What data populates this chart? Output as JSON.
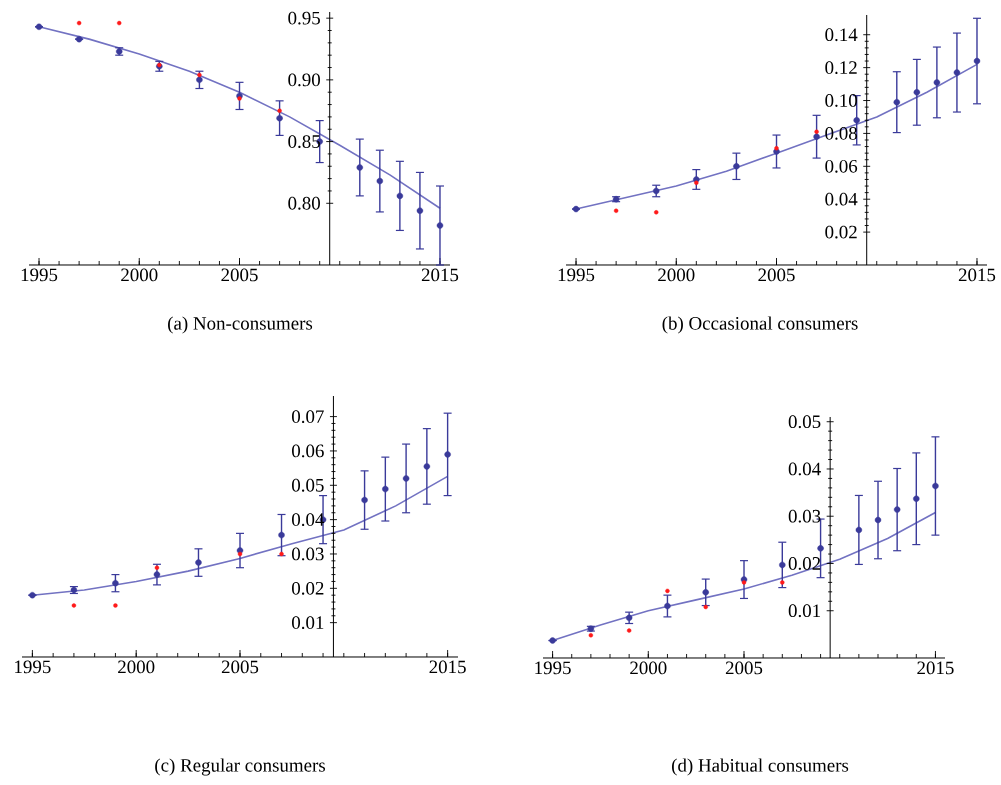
{
  "chart_data": [
    {
      "type": "scatter",
      "title": "(a) Non-consumers",
      "xlim": [
        1994.5,
        2015.5
      ],
      "ylim": [
        0.75,
        0.955
      ],
      "xticks": [
        1995,
        2000,
        2005,
        2015
      ],
      "yticks": [
        {
          "value": 0.8,
          "label": "0.80"
        },
        0.85,
        {
          "value": 0.9,
          "label": "0.90"
        },
        0.95
      ],
      "marker": "circle",
      "series": [
        {
          "type": "line",
          "color": "#7272c2",
          "marker": "none",
          "x": [
            1995,
            1997.5,
            2000,
            2002.5,
            2005,
            2007.5,
            2010,
            2012.5,
            2015
          ],
          "values": [
            0.943,
            0.933,
            0.921,
            0.907,
            0.89,
            0.87,
            0.847,
            0.823,
            0.796
          ]
        },
        {
          "color": "#3a3a9a",
          "x": [
            1995,
            1997,
            1999,
            2001,
            2003,
            2005,
            2007,
            2009,
            2011,
            2012,
            2013,
            2014,
            2015
          ],
          "values": [
            0.943,
            0.933,
            0.923,
            0.911,
            0.9,
            0.887,
            0.869,
            0.85,
            0.829,
            0.818,
            0.806,
            0.794,
            0.782
          ],
          "errors": [
            null,
            null,
            0.003,
            0.004,
            0.007,
            0.011,
            0.014,
            0.017,
            0.023,
            0.025,
            0.028,
            0.031,
            0.032
          ]
        },
        {
          "color": "#ff1a1a",
          "x": [
            1997,
            1999,
            2001,
            2003,
            2005,
            2007
          ],
          "values": [
            0.946,
            0.946,
            0.912,
            0.904,
            0.885,
            0.875
          ]
        }
      ]
    },
    {
      "type": "scatter",
      "title": "(b) Occasional consumers",
      "xlim": [
        1994.5,
        2015.5
      ],
      "ylim": [
        0,
        0.152
      ],
      "xticks": [
        1995,
        2000,
        2005,
        2015
      ],
      "yticks": [
        0.02,
        0.04,
        0.06,
        0.08,
        {
          "value": 0.1,
          "label": "0.10"
        },
        0.12,
        0.14
      ],
      "marker": "circle",
      "series": [
        {
          "type": "line",
          "color": "#7272c2",
          "marker": "none",
          "x": [
            1995,
            1997.5,
            2000,
            2002.5,
            2005,
            2007.5,
            2010,
            2012.5,
            2015
          ],
          "values": [
            0.034,
            0.041,
            0.048,
            0.057,
            0.068,
            0.079,
            0.09,
            0.105,
            0.122
          ]
        },
        {
          "color": "#3a3a9a",
          "x": [
            1995,
            1997,
            1999,
            2001,
            2003,
            2005,
            2007,
            2009,
            2011,
            2012,
            2013,
            2014,
            2015
          ],
          "values": [
            0.034,
            0.04,
            0.045,
            0.052,
            0.06,
            0.069,
            0.078,
            0.088,
            0.099,
            0.105,
            0.111,
            0.117,
            0.124
          ],
          "errors": [
            null,
            0.0015,
            0.0035,
            0.006,
            0.008,
            0.01,
            0.013,
            0.015,
            0.0185,
            0.02,
            0.0215,
            0.024,
            0.026
          ]
        },
        {
          "color": "#ff1a1a",
          "x": [
            1997,
            1999,
            2001,
            2005,
            2007
          ],
          "values": [
            0.033,
            0.032,
            0.05,
            0.071,
            0.081
          ]
        }
      ]
    },
    {
      "type": "scatter",
      "title": "(c) Regular consumers",
      "xlim": [
        1994.5,
        2015.5
      ],
      "ylim": [
        0,
        0.076
      ],
      "xticks": [
        1995,
        2000,
        2005,
        2015
      ],
      "yticks": [
        0.01,
        0.02,
        0.03,
        0.04,
        0.05,
        0.06,
        0.07
      ],
      "marker": "circle",
      "series": [
        {
          "type": "line",
          "color": "#7272c2",
          "marker": "none",
          "x": [
            1995,
            1997.5,
            2000,
            2002.5,
            2005,
            2007.5,
            2010,
            2012.5,
            2015
          ],
          "values": [
            0.018,
            0.0195,
            0.022,
            0.025,
            0.0287,
            0.033,
            0.037,
            0.044,
            0.0526
          ]
        },
        {
          "color": "#3a3a9a",
          "x": [
            1995,
            1997,
            1999,
            2001,
            2003,
            2005,
            2007,
            2009,
            2011,
            2012,
            2013,
            2014,
            2015
          ],
          "values": [
            0.018,
            0.0195,
            0.0215,
            0.024,
            0.0275,
            0.031,
            0.0355,
            0.04,
            0.0457,
            0.0489,
            0.052,
            0.0555,
            0.059
          ],
          "errors": [
            null,
            0.001,
            0.0025,
            0.003,
            0.004,
            0.005,
            0.006,
            0.007,
            0.0085,
            0.0093,
            0.01,
            0.011,
            0.012
          ]
        },
        {
          "color": "#ff1a1a",
          "x": [
            1997,
            1999,
            2001,
            2005,
            2007
          ],
          "values": [
            0.015,
            0.015,
            0.026,
            0.03,
            0.03
          ]
        }
      ]
    },
    {
      "type": "scatter",
      "title": "(d) Habitual consumers",
      "xlim": [
        1994.5,
        2015.5
      ],
      "ylim": [
        0,
        0.051
      ],
      "xticks": [
        1995,
        2000,
        2005,
        2015
      ],
      "yticks": [
        0.01,
        0.02,
        0.03,
        0.04,
        0.05
      ],
      "marker": "circle",
      "series": [
        {
          "type": "line",
          "color": "#7272c2",
          "marker": "none",
          "x": [
            1995,
            1997.5,
            2000,
            2002.5,
            2005,
            2007.5,
            2010,
            2012.5,
            2015
          ],
          "values": [
            0.0037,
            0.007,
            0.01,
            0.0123,
            0.0146,
            0.0175,
            0.0209,
            0.0253,
            0.0308
          ]
        },
        {
          "color": "#3a3a9a",
          "x": [
            1995,
            1997,
            1999,
            2001,
            2003,
            2005,
            2007,
            2009,
            2011,
            2012,
            2013,
            2014,
            2015
          ],
          "values": [
            0.0037,
            0.0062,
            0.0085,
            0.011,
            0.0139,
            0.0166,
            0.0197,
            0.0232,
            0.0271,
            0.0292,
            0.0314,
            0.0337,
            0.0364
          ],
          "errors": [
            null,
            0.0005,
            0.0012,
            0.0023,
            0.0028,
            0.004,
            0.0048,
            0.0062,
            0.0073,
            0.0082,
            0.0087,
            0.0097,
            0.0104
          ]
        },
        {
          "color": "#ff1a1a",
          "x": [
            1997,
            1999,
            2001,
            2003,
            2005,
            2007
          ],
          "values": [
            0.0048,
            0.0058,
            0.0142,
            0.0108,
            0.016,
            0.016
          ]
        }
      ]
    }
  ]
}
